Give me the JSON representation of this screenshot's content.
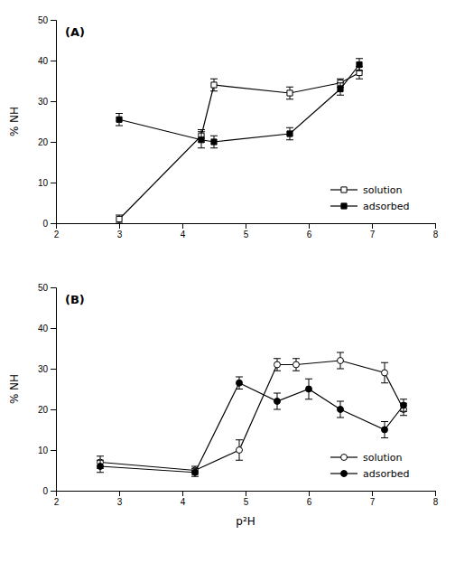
{
  "chart_data": [
    {
      "type": "line",
      "title": "(A)",
      "y_label": "% NH",
      "xlim": [
        2,
        8
      ],
      "ylim": [
        0,
        50
      ],
      "xticks": [
        2,
        3,
        4,
        5,
        6,
        7,
        8
      ],
      "yticks": [
        0,
        10,
        20,
        30,
        40,
        50
      ],
      "grid": false,
      "legend": "lower right",
      "series": [
        {
          "name": "solution",
          "color": "#000000",
          "marker": "square-open",
          "x": [
            3.0,
            4.3,
            4.5,
            5.7,
            6.5,
            6.8
          ],
          "values": [
            1.0,
            21.5,
            34.0,
            32.0,
            34.5,
            37.0
          ],
          "yerr": [
            1.0,
            1.5,
            1.5,
            1.5,
            1.0,
            1.5
          ]
        },
        {
          "name": "adsorbed",
          "color": "#000000",
          "marker": "square",
          "x": [
            3.0,
            4.3,
            4.5,
            5.7,
            6.5,
            6.8
          ],
          "values": [
            25.5,
            20.5,
            20.0,
            22.0,
            33.0,
            39.0
          ],
          "yerr": [
            1.5,
            2.0,
            1.5,
            1.5,
            1.5,
            1.5
          ]
        }
      ]
    },
    {
      "type": "line",
      "title": "(B)",
      "y_label": "% NH",
      "x_label": "p²H",
      "xlim": [
        2,
        8
      ],
      "ylim": [
        0,
        50
      ],
      "xticks": [
        2,
        3,
        4,
        5,
        6,
        7,
        8
      ],
      "yticks": [
        0,
        10,
        20,
        30,
        40,
        50
      ],
      "grid": false,
      "legend": "lower right",
      "series": [
        {
          "name": "solution",
          "color": "#000000",
          "marker": "circle-open",
          "x": [
            2.7,
            4.2,
            4.9,
            5.5,
            5.8,
            6.5,
            7.2,
            7.5
          ],
          "values": [
            7.0,
            5.0,
            10.0,
            31.0,
            31.0,
            32.0,
            29.0,
            20.0
          ],
          "yerr": [
            1.5,
            1.0,
            2.5,
            1.5,
            1.5,
            2.0,
            2.5,
            1.5
          ]
        },
        {
          "name": "adsorbed",
          "color": "#000000",
          "marker": "circle",
          "x": [
            2.7,
            4.2,
            4.9,
            5.5,
            6.0,
            6.5,
            7.2,
            7.5
          ],
          "values": [
            6.0,
            4.5,
            26.5,
            22.0,
            25.0,
            20.0,
            15.0,
            21.0
          ],
          "yerr": [
            1.5,
            1.0,
            1.5,
            2.0,
            2.5,
            2.0,
            2.0,
            1.5
          ]
        }
      ]
    }
  ]
}
